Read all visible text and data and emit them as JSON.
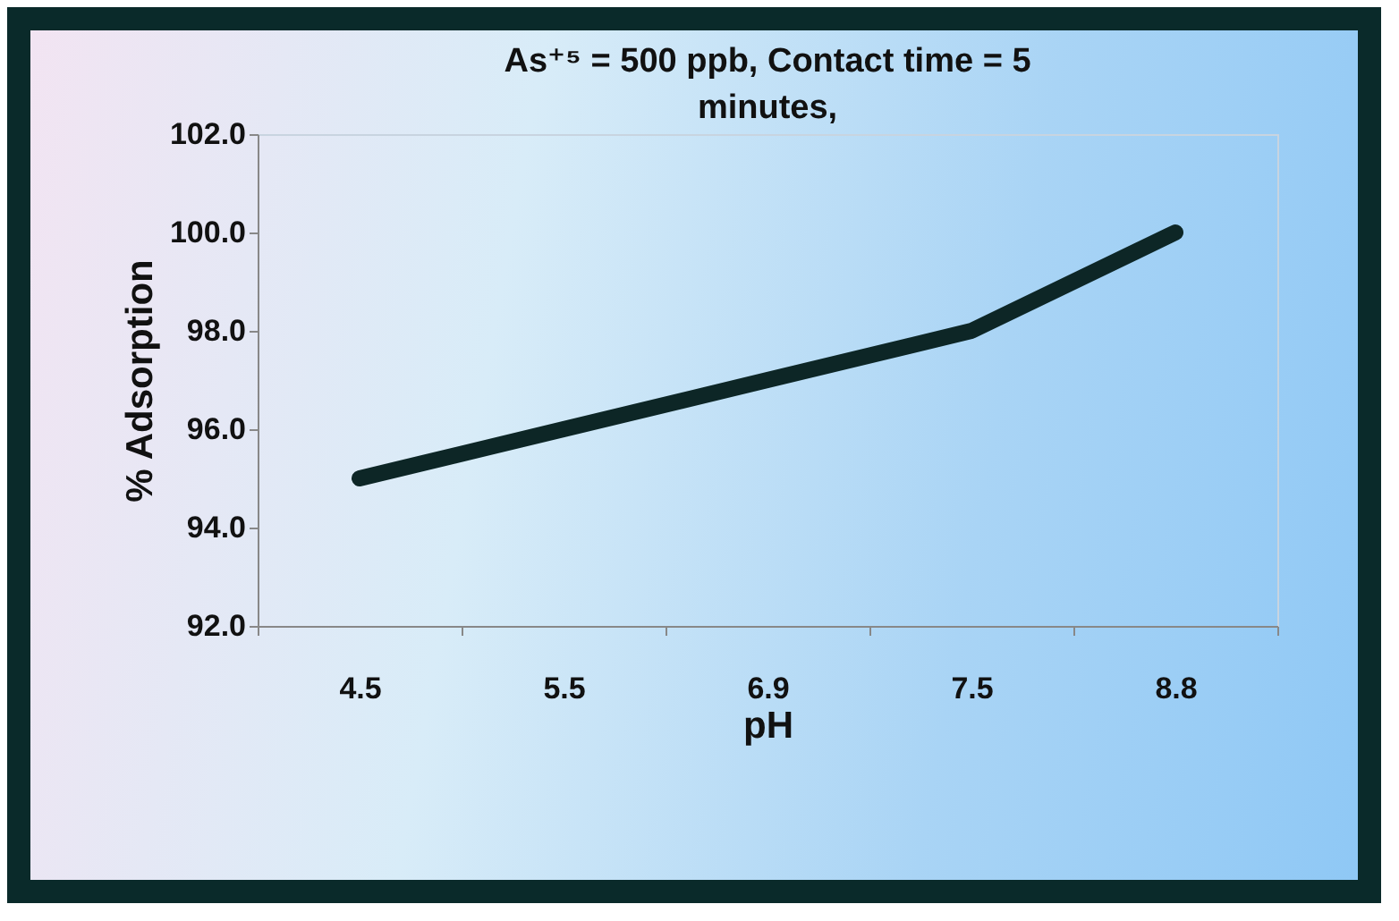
{
  "chart_data": {
    "type": "line",
    "title": "As⁺⁵ = 500 ppb, Contact time = 5 minutes,",
    "xlabel": "pH",
    "ylabel": "% Adsorption",
    "categories": [
      "4.5",
      "5.5",
      "6.9",
      "7.5",
      "8.8"
    ],
    "series": [
      {
        "color": "#0d2626",
        "values": [
          95,
          96,
          97,
          98,
          100
        ]
      }
    ],
    "ylim": [
      92,
      102
    ],
    "yticks": [
      {
        "value": 92,
        "label": "92.0"
      },
      {
        "value": 94,
        "label": "94.0"
      },
      {
        "value": 96,
        "label": "96.0"
      },
      {
        "value": 98,
        "label": "98.0"
      },
      {
        "value": 100,
        "label": "100.0"
      },
      {
        "value": 102,
        "label": "102.0"
      }
    ],
    "grid": false,
    "marker": "none",
    "line_style": "solid"
  }
}
